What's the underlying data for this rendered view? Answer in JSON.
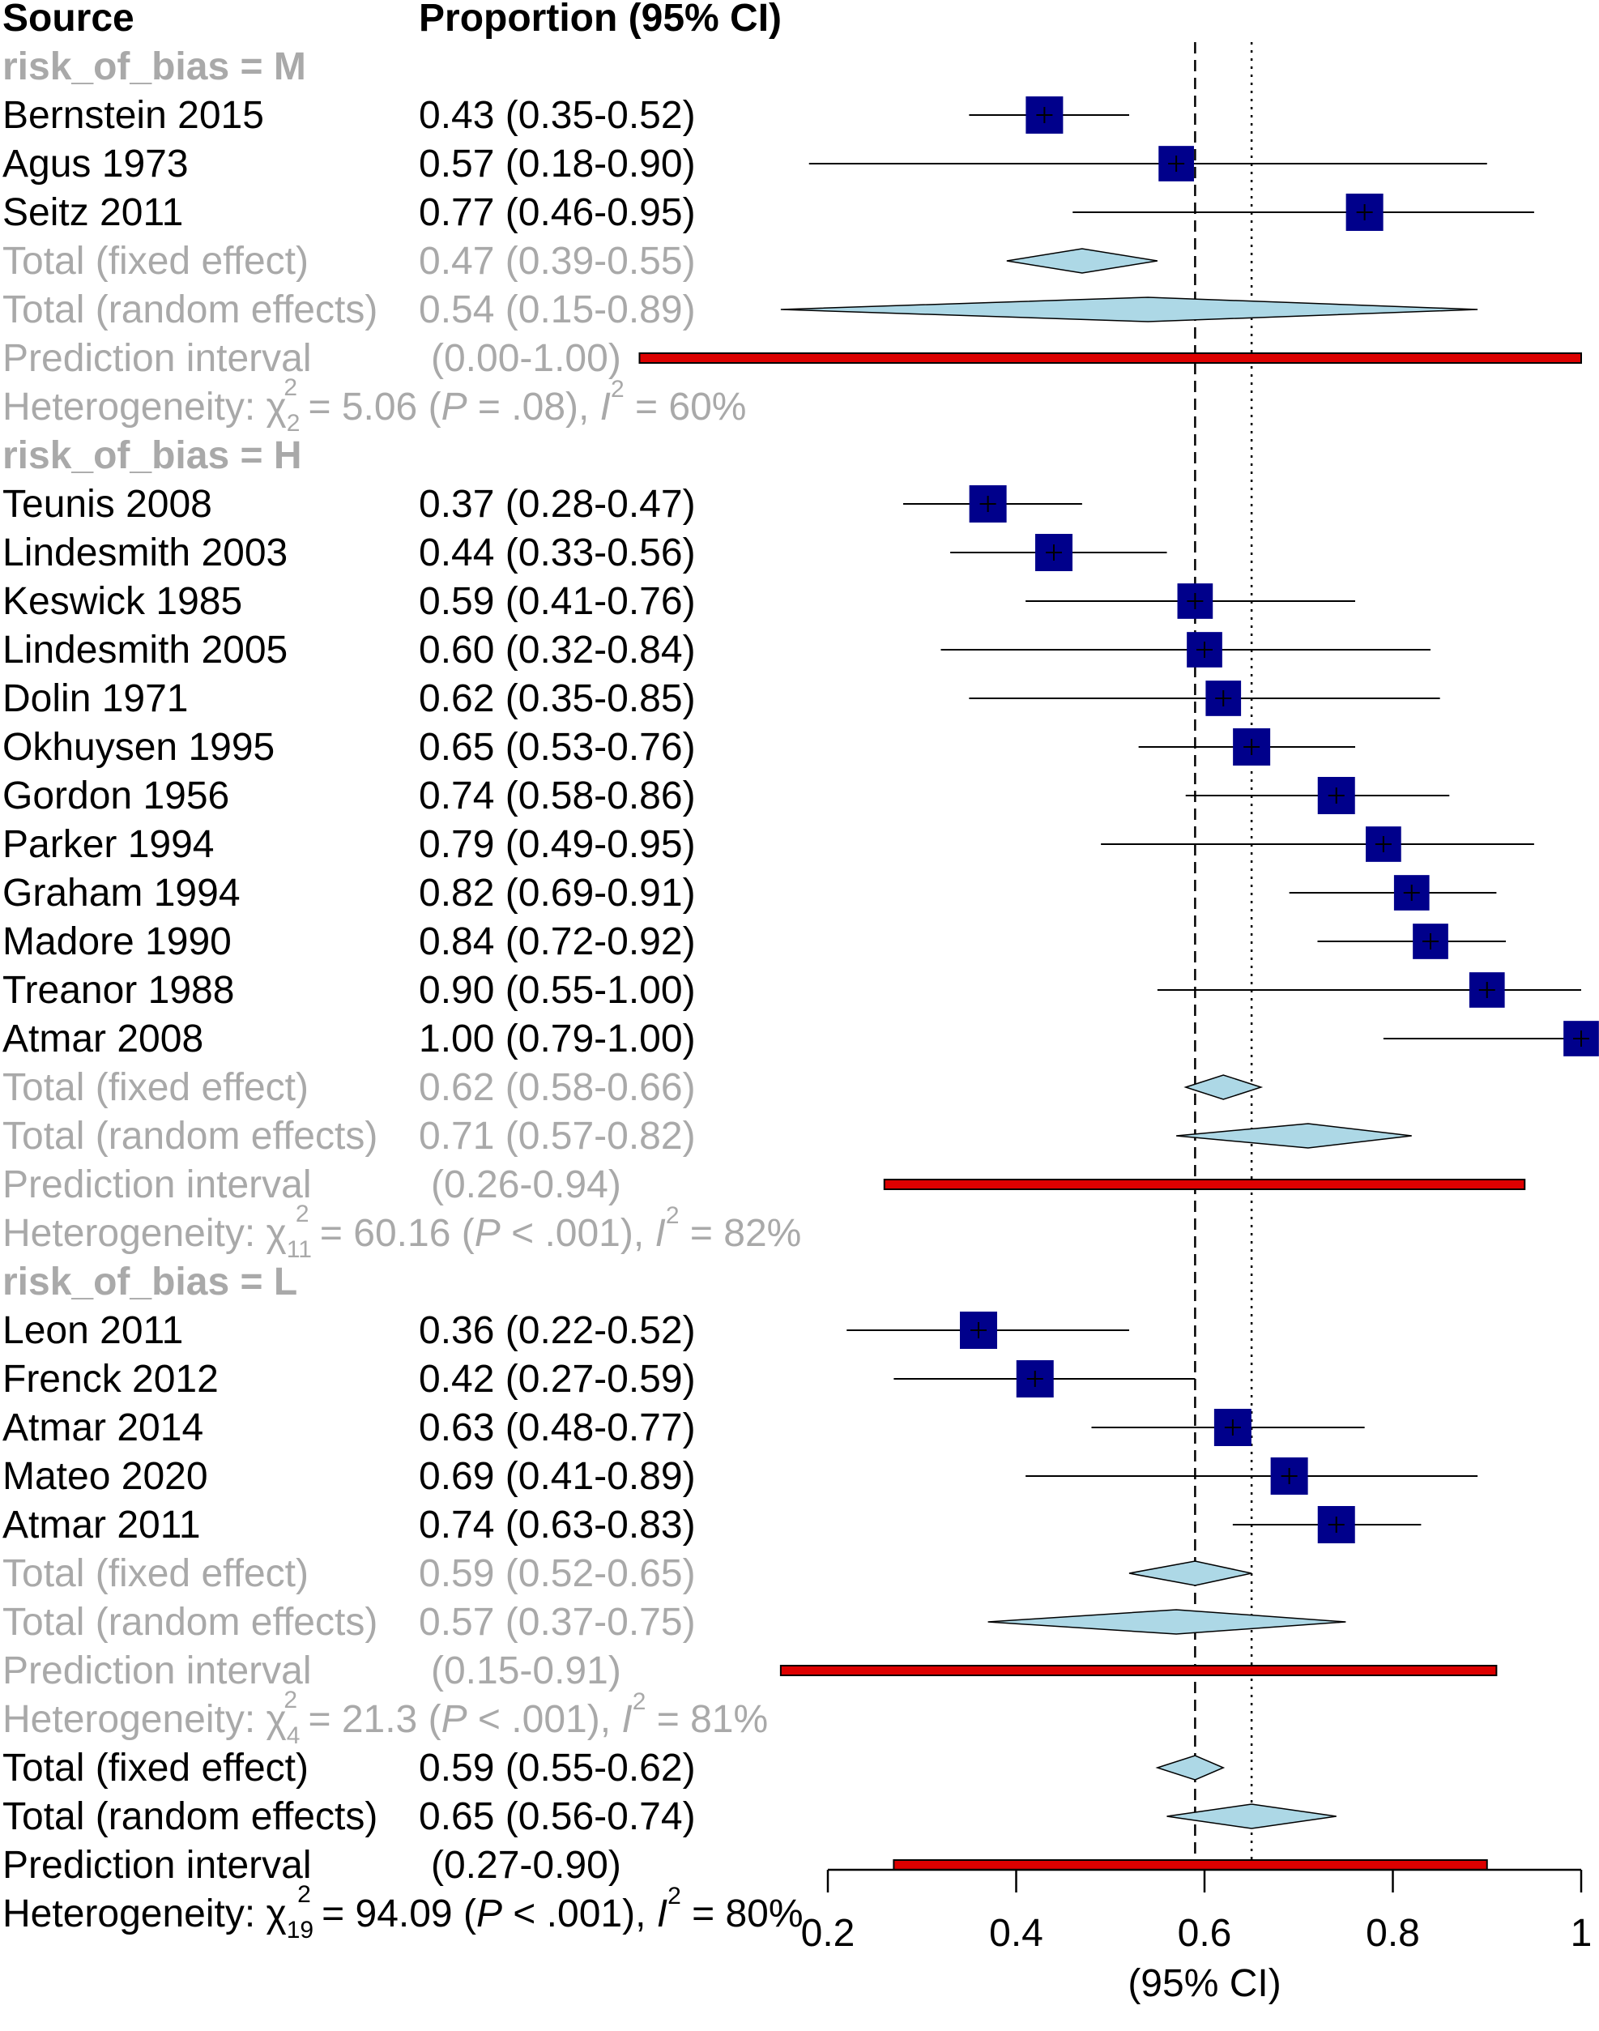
{
  "chart_data": {
    "type": "forest",
    "headers": {
      "source": "Source",
      "estimate": "Proportion (95% CI)"
    },
    "xlabel": "(95% CI)",
    "xlim": [
      0.2,
      1
    ],
    "xticks": [
      "0.2",
      "0.4",
      "0.6",
      "0.8",
      "1"
    ],
    "reference_lines": {
      "fixed_effect": 0.59,
      "random_effects": 0.65
    },
    "colors": {
      "study_box": "#00008b",
      "diamond": "#add8e6",
      "prediction": "#dd0000",
      "subgroup_text": "#a9a9a9"
    },
    "subgroups": [
      {
        "label": "risk_of_bias = M",
        "studies": [
          {
            "name": "Bernstein 2015",
            "text": "0.43 (0.35-0.52)",
            "est": 0.43,
            "lo": 0.35,
            "hi": 0.52,
            "weight": 1.0
          },
          {
            "name": "Agus 1973",
            "text": "0.57 (0.18-0.90)",
            "est": 0.57,
            "lo": 0.18,
            "hi": 0.9,
            "weight": 0.95
          },
          {
            "name": "Seitz 2011",
            "text": "0.77 (0.46-0.95)",
            "est": 0.77,
            "lo": 0.46,
            "hi": 0.95,
            "weight": 1.0
          }
        ],
        "fixed": {
          "label": "Total (fixed effect)",
          "text": "0.47 (0.39-0.55)",
          "est": 0.47,
          "lo": 0.39,
          "hi": 0.55
        },
        "random": {
          "label": "Total (random effects)",
          "text": "0.54 (0.15-0.89)",
          "est": 0.54,
          "lo": 0.15,
          "hi": 0.89
        },
        "prediction": {
          "label": "Prediction interval",
          "text": "(0.00-1.00)",
          "lo": 0.0,
          "hi": 1.0
        },
        "heterogeneity": {
          "prefix": "Heterogeneity: ",
          "chi": "χ",
          "df": "2",
          "sq": "2",
          "stat": " = 5.06 (",
          "p": "P",
          "pval": " = .08), ",
          "i": "I",
          "iq": " = 60%"
        }
      },
      {
        "label": "risk_of_bias = H",
        "studies": [
          {
            "name": "Teunis 2008",
            "text": "0.37 (0.28-0.47)",
            "est": 0.37,
            "lo": 0.28,
            "hi": 0.47,
            "weight": 1.0
          },
          {
            "name": "Lindesmith 2003",
            "text": "0.44 (0.33-0.56)",
            "est": 0.44,
            "lo": 0.33,
            "hi": 0.56,
            "weight": 1.0
          },
          {
            "name": "Keswick 1985",
            "text": "0.59 (0.41-0.76)",
            "est": 0.59,
            "lo": 0.41,
            "hi": 0.76,
            "weight": 0.95
          },
          {
            "name": "Lindesmith 2005",
            "text": "0.60 (0.32-0.84)",
            "est": 0.6,
            "lo": 0.32,
            "hi": 0.84,
            "weight": 0.95
          },
          {
            "name": "Dolin 1971",
            "text": "0.62 (0.35-0.85)",
            "est": 0.62,
            "lo": 0.35,
            "hi": 0.85,
            "weight": 0.95
          },
          {
            "name": "Okhuysen 1995",
            "text": "0.65 (0.53-0.76)",
            "est": 0.65,
            "lo": 0.53,
            "hi": 0.76,
            "weight": 1.0
          },
          {
            "name": "Gordon 1956",
            "text": "0.74 (0.58-0.86)",
            "est": 0.74,
            "lo": 0.58,
            "hi": 0.86,
            "weight": 1.0
          },
          {
            "name": "Parker 1994",
            "text": "0.79 (0.49-0.95)",
            "est": 0.79,
            "lo": 0.49,
            "hi": 0.95,
            "weight": 0.95
          },
          {
            "name": "Graham 1994",
            "text": "0.82 (0.69-0.91)",
            "est": 0.82,
            "lo": 0.69,
            "hi": 0.91,
            "weight": 0.95
          },
          {
            "name": "Madore 1990",
            "text": "0.84 (0.72-0.92)",
            "est": 0.84,
            "lo": 0.72,
            "hi": 0.92,
            "weight": 0.95
          },
          {
            "name": "Treanor 1988",
            "text": "0.90 (0.55-1.00)",
            "est": 0.9,
            "lo": 0.55,
            "hi": 1.0,
            "weight": 0.95
          },
          {
            "name": "Atmar 2008",
            "text": "1.00 (0.79-1.00)",
            "est": 1.0,
            "lo": 0.79,
            "hi": 1.0,
            "weight": 0.95
          }
        ],
        "fixed": {
          "label": "Total (fixed effect)",
          "text": "0.62 (0.58-0.66)",
          "est": 0.62,
          "lo": 0.58,
          "hi": 0.66
        },
        "random": {
          "label": "Total (random effects)",
          "text": "0.71 (0.57-0.82)",
          "est": 0.71,
          "lo": 0.57,
          "hi": 0.82
        },
        "prediction": {
          "label": "Prediction interval",
          "text": "(0.26-0.94)",
          "lo": 0.26,
          "hi": 0.94
        },
        "heterogeneity": {
          "prefix": "Heterogeneity: ",
          "chi": "χ",
          "df": "11",
          "sq": "2",
          "stat": " = 60.16 (",
          "p": "P",
          "pval": " < .001), ",
          "i": "I",
          "iq": " = 82%"
        }
      },
      {
        "label": "risk_of_bias = L",
        "studies": [
          {
            "name": "Leon 2011",
            "text": "0.36 (0.22-0.52)",
            "est": 0.36,
            "lo": 0.22,
            "hi": 0.52,
            "weight": 1.0
          },
          {
            "name": "Frenck 2012",
            "text": "0.42 (0.27-0.59)",
            "est": 0.42,
            "lo": 0.27,
            "hi": 0.59,
            "weight": 1.0
          },
          {
            "name": "Atmar 2014",
            "text": "0.63 (0.48-0.77)",
            "est": 0.63,
            "lo": 0.48,
            "hi": 0.77,
            "weight": 1.0
          },
          {
            "name": "Mateo 2020",
            "text": "0.69 (0.41-0.89)",
            "est": 0.69,
            "lo": 0.41,
            "hi": 0.89,
            "weight": 1.0
          },
          {
            "name": "Atmar 2011",
            "text": "0.74 (0.63-0.83)",
            "est": 0.74,
            "lo": 0.63,
            "hi": 0.83,
            "weight": 1.0
          }
        ],
        "fixed": {
          "label": "Total (fixed effect)",
          "text": "0.59 (0.52-0.65)",
          "est": 0.59,
          "lo": 0.52,
          "hi": 0.65
        },
        "random": {
          "label": "Total (random effects)",
          "text": "0.57 (0.37-0.75)",
          "est": 0.57,
          "lo": 0.37,
          "hi": 0.75
        },
        "prediction": {
          "label": "Prediction interval",
          "text": "(0.15-0.91)",
          "lo": 0.15,
          "hi": 0.91
        },
        "heterogeneity": {
          "prefix": "Heterogeneity: ",
          "chi": "χ",
          "df": "4",
          "sq": "2",
          "stat": " = 21.3 (",
          "p": "P",
          "pval": " < .001), ",
          "i": "I",
          "iq": " = 81%"
        }
      }
    ],
    "overall": {
      "fixed": {
        "label": "Total (fixed effect)",
        "text": "0.59 (0.55-0.62)",
        "est": 0.59,
        "lo": 0.55,
        "hi": 0.62
      },
      "random": {
        "label": "Total (random effects)",
        "text": "0.65 (0.56-0.74)",
        "est": 0.65,
        "lo": 0.56,
        "hi": 0.74
      },
      "prediction": {
        "label": "Prediction interval",
        "text": "(0.27-0.90)",
        "lo": 0.27,
        "hi": 0.9
      },
      "heterogeneity": {
        "prefix": "Heterogeneity: ",
        "chi": "χ",
        "df": "19",
        "sq": "2",
        "stat": " = 94.09 (",
        "p": "P",
        "pval": " < .001), ",
        "i": "I",
        "iq": " = 80%"
      }
    }
  }
}
